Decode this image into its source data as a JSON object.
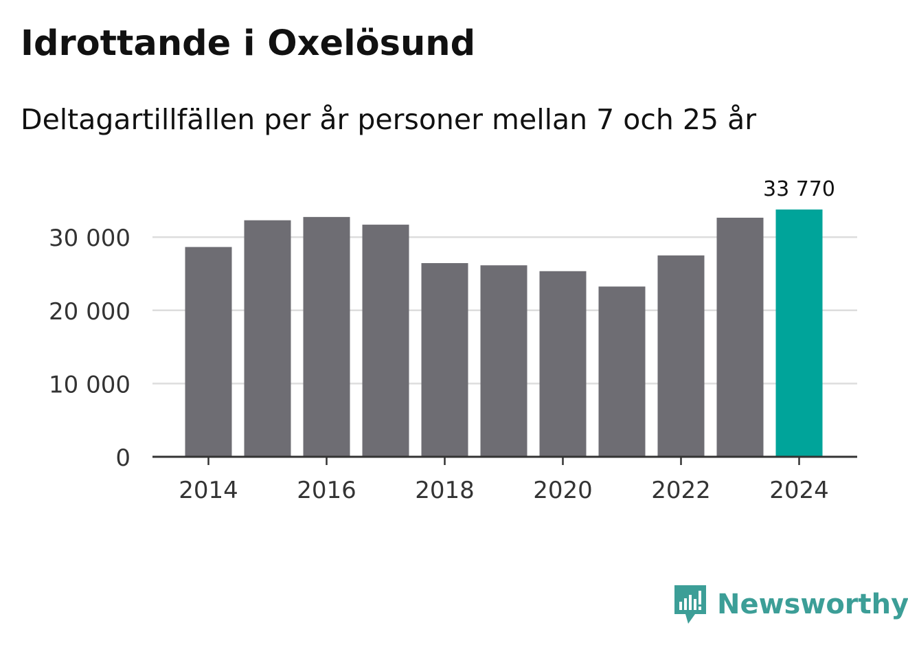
{
  "header": {
    "title": "Idrottande i Oxelösund",
    "subtitle": "Deltagartillfällen per år personer mellan 7 och 25 år"
  },
  "brand": {
    "name": "Newsworthy",
    "icon": "newsworthy-logo-icon",
    "color": "#3c9e97"
  },
  "colors": {
    "bar": "#6e6d73",
    "highlight": "#00a49a",
    "grid": "#dddddd",
    "axis": "#333333",
    "text": "#333333"
  },
  "chart_data": {
    "type": "bar",
    "title": "Idrottande i Oxelösund",
    "subtitle": "Deltagartillfällen per år personer mellan 7 och 25 år",
    "xlabel": "",
    "ylabel": "",
    "categories": [
      "2014",
      "2015",
      "2016",
      "2017",
      "2018",
      "2019",
      "2020",
      "2021",
      "2022",
      "2023",
      "2024"
    ],
    "values": [
      28650,
      32300,
      32750,
      31700,
      26450,
      26150,
      25350,
      23250,
      27500,
      32650,
      33770
    ],
    "highlight_index": 10,
    "highlight_label": "33 770",
    "ylim": [
      0,
      33770
    ],
    "yticks": [
      0,
      10000,
      20000,
      30000
    ],
    "ytick_labels": [
      "0",
      "10 000",
      "20 000",
      "30 000"
    ],
    "xtick_labels": [
      "2014",
      "2016",
      "2018",
      "2020",
      "2022",
      "2024"
    ],
    "grid": true,
    "legend": "none"
  }
}
